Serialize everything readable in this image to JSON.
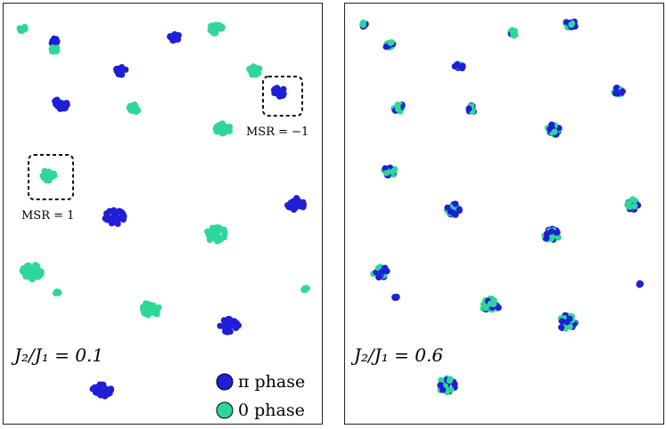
{
  "colors": {
    "pi_phase": "#1f1fd6",
    "zero_phase": "#2fd69a",
    "box": "#111111"
  },
  "legend": {
    "pi_label": "π phase",
    "zero_label": "0 phase"
  },
  "panels": [
    {
      "ratio_label": "J₂/J₁ = 0.1",
      "annotations": [
        "MSR = −1",
        "MSR = 1"
      ]
    },
    {
      "ratio_label": "J₂/J₁ = 0.6"
    }
  ],
  "chart_data": [
    {
      "type": "scatter",
      "title": "",
      "xlabel": "",
      "ylabel": "",
      "xlim": [
        0,
        1
      ],
      "ylim": [
        0,
        1
      ],
      "grid": false,
      "legend_placement": "bottom-right",
      "clusters": [
        {
          "x": 0.06,
          "y": 0.94,
          "phase": "zero",
          "spread": 0.01
        },
        {
          "x": 0.16,
          "y": 0.91,
          "phase": "pi",
          "spread": 0.012
        },
        {
          "x": 0.16,
          "y": 0.89,
          "phase": "zero",
          "spread": 0.01
        },
        {
          "x": 0.54,
          "y": 0.92,
          "phase": "pi",
          "spread": 0.016
        },
        {
          "x": 0.67,
          "y": 0.94,
          "phase": "zero",
          "spread": 0.02
        },
        {
          "x": 0.37,
          "y": 0.84,
          "phase": "pi",
          "spread": 0.016
        },
        {
          "x": 0.79,
          "y": 0.84,
          "phase": "zero",
          "spread": 0.018
        },
        {
          "x": 0.87,
          "y": 0.79,
          "phase": "pi",
          "spread": 0.02
        },
        {
          "x": 0.18,
          "y": 0.76,
          "phase": "pi",
          "spread": 0.022
        },
        {
          "x": 0.41,
          "y": 0.75,
          "phase": "zero",
          "spread": 0.016
        },
        {
          "x": 0.69,
          "y": 0.7,
          "phase": "zero",
          "spread": 0.024
        },
        {
          "x": 0.14,
          "y": 0.59,
          "phase": "zero",
          "spread": 0.02
        },
        {
          "x": 0.35,
          "y": 0.49,
          "phase": "pi",
          "spread": 0.03
        },
        {
          "x": 0.92,
          "y": 0.52,
          "phase": "pi",
          "spread": 0.026
        },
        {
          "x": 0.67,
          "y": 0.45,
          "phase": "zero",
          "spread": 0.03
        },
        {
          "x": 0.09,
          "y": 0.36,
          "phase": "zero",
          "spread": 0.032
        },
        {
          "x": 0.17,
          "y": 0.31,
          "phase": "zero",
          "spread": 0.006
        },
        {
          "x": 0.95,
          "y": 0.32,
          "phase": "zero",
          "spread": 0.006
        },
        {
          "x": 0.46,
          "y": 0.27,
          "phase": "zero",
          "spread": 0.03
        },
        {
          "x": 0.71,
          "y": 0.23,
          "phase": "pi",
          "spread": 0.03
        },
        {
          "x": 0.31,
          "y": 0.08,
          "phase": "pi",
          "spread": 0.03
        }
      ]
    },
    {
      "type": "scatter",
      "title": "",
      "xlabel": "",
      "ylabel": "",
      "xlim": [
        0,
        1
      ],
      "ylim": [
        0,
        1
      ],
      "grid": false,
      "clusters": [
        {
          "x": 0.06,
          "y": 0.95,
          "phase": "mixed",
          "spread": 0.008
        },
        {
          "x": 0.14,
          "y": 0.9,
          "phase": "mixed",
          "spread": 0.014
        },
        {
          "x": 0.53,
          "y": 0.93,
          "phase": "mixed",
          "spread": 0.012
        },
        {
          "x": 0.71,
          "y": 0.95,
          "phase": "mixed",
          "spread": 0.018
        },
        {
          "x": 0.36,
          "y": 0.85,
          "phase": "mixed",
          "spread": 0.014
        },
        {
          "x": 0.86,
          "y": 0.79,
          "phase": "mixed",
          "spread": 0.016
        },
        {
          "x": 0.17,
          "y": 0.75,
          "phase": "mixed",
          "spread": 0.018
        },
        {
          "x": 0.4,
          "y": 0.75,
          "phase": "mixed",
          "spread": 0.014
        },
        {
          "x": 0.66,
          "y": 0.7,
          "phase": "mixed",
          "spread": 0.022
        },
        {
          "x": 0.14,
          "y": 0.6,
          "phase": "mixed",
          "spread": 0.02
        },
        {
          "x": 0.34,
          "y": 0.51,
          "phase": "mixed",
          "spread": 0.026
        },
        {
          "x": 0.91,
          "y": 0.52,
          "phase": "mixed",
          "spread": 0.022
        },
        {
          "x": 0.65,
          "y": 0.45,
          "phase": "mixed",
          "spread": 0.026
        },
        {
          "x": 0.11,
          "y": 0.36,
          "phase": "mixed",
          "spread": 0.024
        },
        {
          "x": 0.16,
          "y": 0.3,
          "phase": "pi",
          "spread": 0.004
        },
        {
          "x": 0.93,
          "y": 0.33,
          "phase": "pi",
          "spread": 0.004
        },
        {
          "x": 0.46,
          "y": 0.28,
          "phase": "mixed",
          "spread": 0.028
        },
        {
          "x": 0.7,
          "y": 0.24,
          "phase": "mixed",
          "spread": 0.028
        },
        {
          "x": 0.32,
          "y": 0.09,
          "phase": "mixed",
          "spread": 0.028
        }
      ]
    }
  ]
}
